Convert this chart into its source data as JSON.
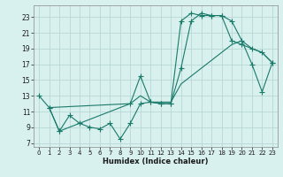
{
  "xlabel": "Humidex (Indice chaleur)",
  "bg_color": "#d8f0ee",
  "grid_color": "#b8d8d4",
  "line_color": "#1a7a6a",
  "xlim": [
    -0.5,
    23.5
  ],
  "ylim": [
    6.5,
    24.5
  ],
  "yticks": [
    7,
    9,
    11,
    13,
    15,
    17,
    19,
    21,
    23
  ],
  "xticks": [
    0,
    1,
    2,
    3,
    4,
    5,
    6,
    7,
    8,
    9,
    10,
    11,
    12,
    13,
    14,
    15,
    16,
    17,
    18,
    19,
    20,
    21,
    22,
    23
  ],
  "series1_x": [
    0,
    1,
    2,
    3,
    4,
    5,
    6,
    7,
    8,
    9,
    10,
    11,
    12,
    13,
    14,
    15,
    16,
    17,
    18,
    19,
    20,
    21,
    22,
    23
  ],
  "series1_y": [
    13,
    11.5,
    8.5,
    10.5,
    9.5,
    9.0,
    8.8,
    9.5,
    7.5,
    9.5,
    12.0,
    12.2,
    12.0,
    12.0,
    16.5,
    22.5,
    23.5,
    23.2,
    23.2,
    20.0,
    19.5,
    19.0,
    18.5,
    17.2
  ],
  "series2_x": [
    1,
    2,
    9,
    10,
    11,
    12,
    13,
    14,
    15,
    16,
    17,
    18,
    19,
    20,
    21,
    22,
    23
  ],
  "series2_y": [
    11.5,
    8.5,
    12.0,
    15.5,
    12.2,
    12.0,
    12.0,
    22.5,
    23.5,
    23.2,
    23.2,
    23.2,
    22.5,
    20.0,
    17.0,
    13.5,
    17.2
  ],
  "series3_x": [
    1,
    9,
    10,
    11,
    12,
    13,
    14,
    15,
    16,
    17,
    18,
    19,
    20,
    21,
    22,
    23
  ],
  "series3_y": [
    11.5,
    12.0,
    13.0,
    12.2,
    12.2,
    12.2,
    14.5,
    15.5,
    16.5,
    17.5,
    18.5,
    19.5,
    20.0,
    19.0,
    18.5,
    17.2
  ]
}
